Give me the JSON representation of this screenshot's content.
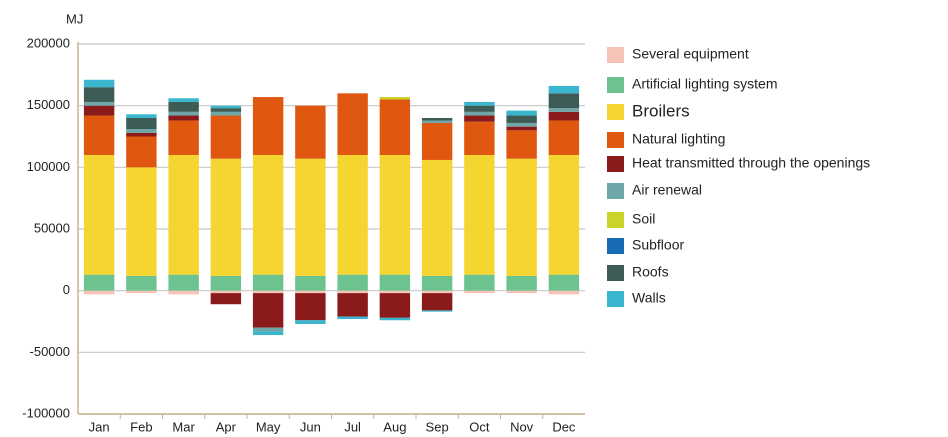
{
  "chart_data": {
    "type": "stacked_bar",
    "y_label": "MJ",
    "categories": [
      "Jan",
      "Feb",
      "Mar",
      "Apr",
      "May",
      "Jun",
      "Jul",
      "Aug",
      "Sep",
      "Oct",
      "Nov",
      "Dec"
    ],
    "series": [
      {
        "name": "Several equipment",
        "color": "#f6c3b8",
        "values": [
          -3000,
          -2000,
          -3000,
          -2000,
          -2000,
          -2000,
          -2000,
          -2000,
          -2000,
          -2000,
          -2000,
          -3000
        ]
      },
      {
        "name": "Artificial lighting system",
        "color": "#6cc38f",
        "values": [
          13000,
          12000,
          13000,
          12000,
          13000,
          12000,
          13000,
          13000,
          12000,
          13000,
          12000,
          13000
        ]
      },
      {
        "name": "Broilers",
        "color": "#f5d631",
        "values": [
          97000,
          88000,
          97000,
          95000,
          97000,
          95000,
          97000,
          97000,
          94000,
          97000,
          95000,
          97000
        ]
      },
      {
        "name": "Natural lighting",
        "color": "#e0580f",
        "values": [
          32000,
          25000,
          28000,
          35000,
          47000,
          43000,
          50000,
          45000,
          30000,
          27000,
          23000,
          28000
        ]
      },
      {
        "name": "Heat transmitted through the openings",
        "color": "#8b1a1a",
        "values": [
          8000,
          3000,
          4000,
          -9000,
          -28000,
          -22000,
          -19000,
          -20000,
          -14000,
          5000,
          3000,
          7000
        ]
      },
      {
        "name": "Air renewal",
        "color": "#6fa7a8",
        "values": [
          3000,
          3000,
          3000,
          3000,
          -3000,
          0,
          0,
          0,
          2000,
          3000,
          3000,
          3000
        ]
      },
      {
        "name": "Soil",
        "color": "#c8d42a",
        "values": [
          0,
          0,
          0,
          0,
          0,
          0,
          0,
          2000,
          0,
          0,
          0,
          0
        ]
      },
      {
        "name": "Subfloor",
        "color": "#1a6bb5",
        "values": [
          0,
          0,
          0,
          0,
          0,
          0,
          0,
          0,
          0,
          0,
          0,
          0
        ]
      },
      {
        "name": "Roofs",
        "color": "#3d5c56",
        "values": [
          12000,
          9000,
          8000,
          3000,
          0,
          0,
          0,
          0,
          2000,
          5000,
          6000,
          12000
        ]
      },
      {
        "name": "Walls",
        "color": "#3bb6cf",
        "values": [
          6000,
          3000,
          3000,
          2000,
          -3000,
          -3000,
          -2000,
          -2000,
          -1000,
          3000,
          4000,
          6000
        ]
      }
    ],
    "ylim": [
      -100000,
      200000
    ],
    "yticks": [
      -100000,
      -50000,
      0,
      50000,
      100000,
      150000,
      200000
    ],
    "grid": true,
    "legend": "right"
  }
}
